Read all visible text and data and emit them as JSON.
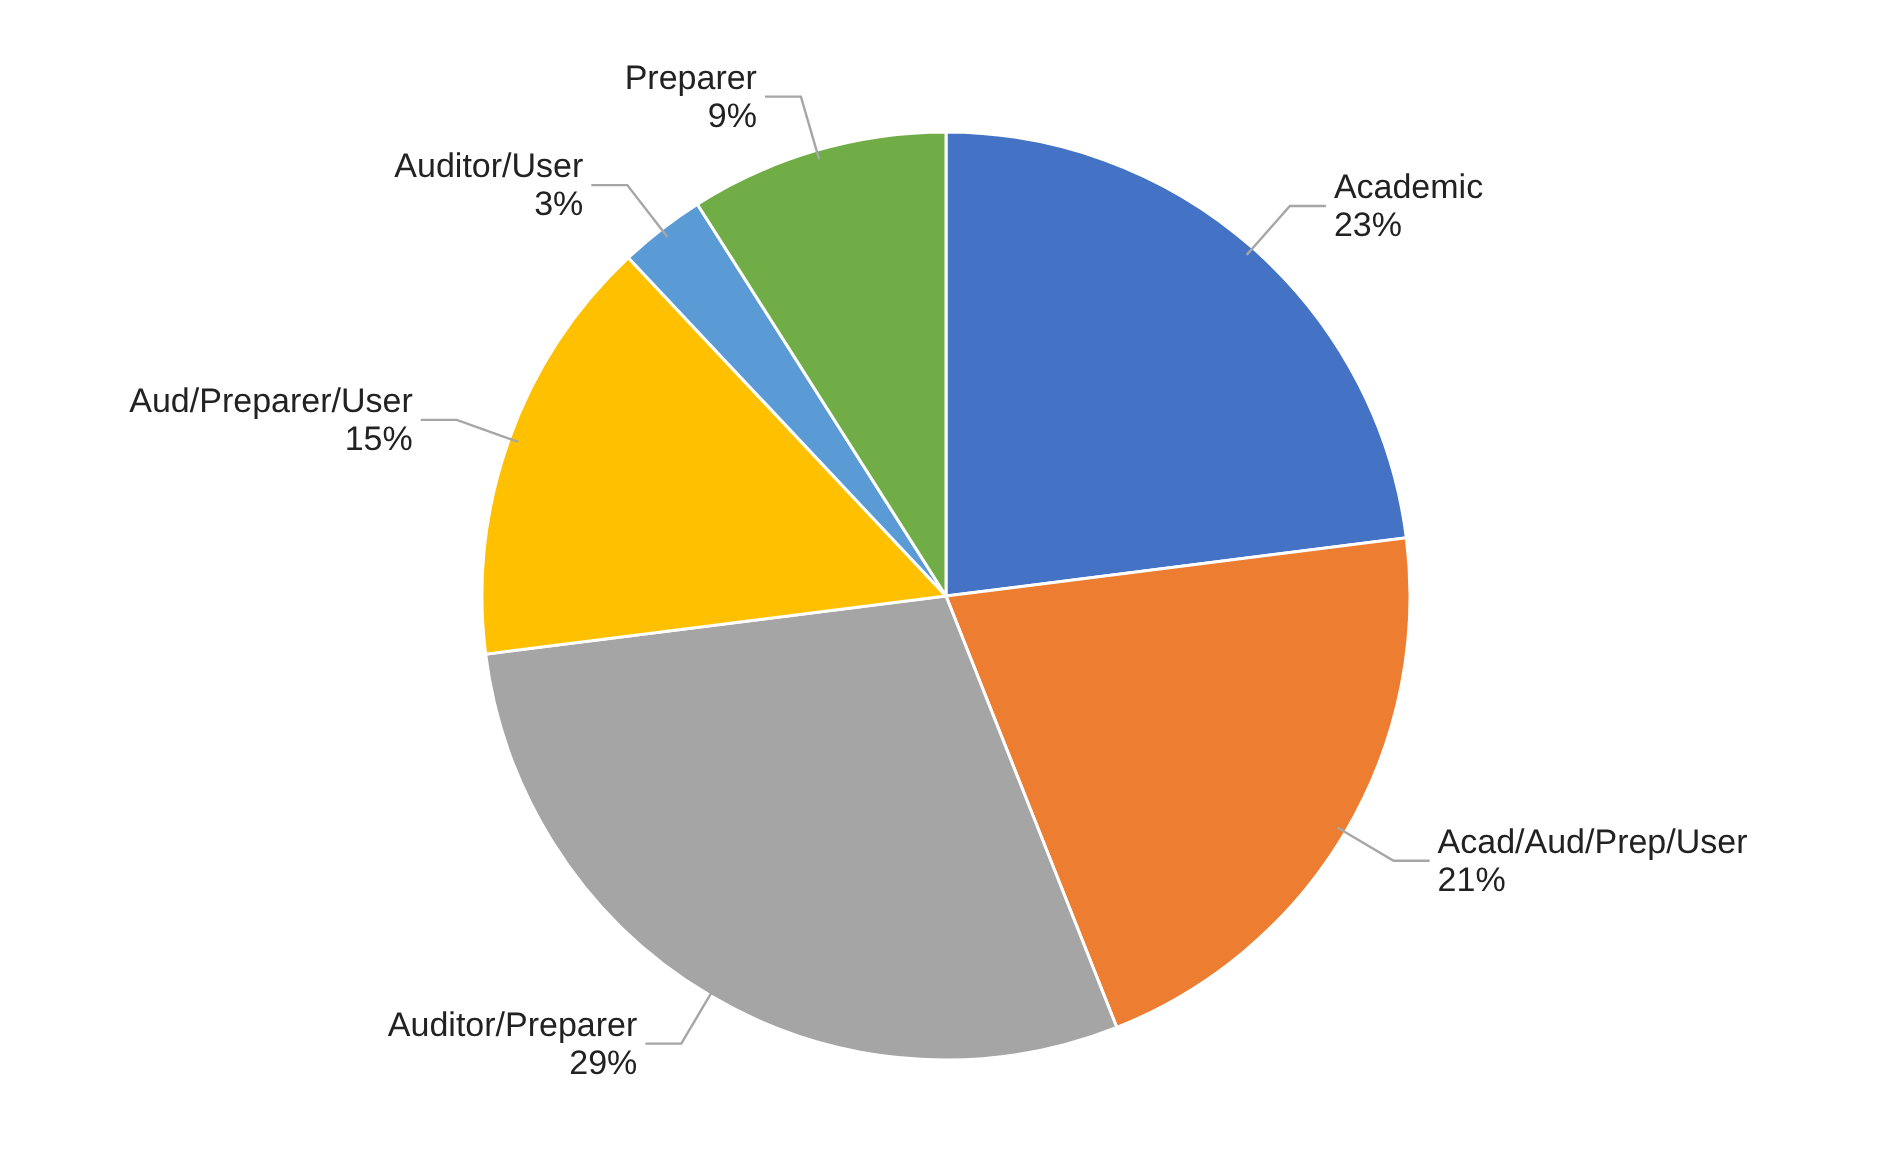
{
  "chart_data": {
    "type": "pie",
    "categories": [
      "Academic",
      "Acad/Aud/Prep/User",
      "Auditor/Preparer",
      "Aud/Preparer/User",
      "Auditor/User",
      "Preparer"
    ],
    "values": [
      23,
      21,
      29,
      15,
      3,
      9
    ],
    "colors": [
      "#4472c4",
      "#ed7d31",
      "#a5a5a5",
      "#ffc000",
      "#5b9bd5",
      "#70ad47"
    ],
    "value_labels": [
      "23%",
      "21%",
      "29%",
      "15%",
      "3%",
      "9%"
    ]
  }
}
